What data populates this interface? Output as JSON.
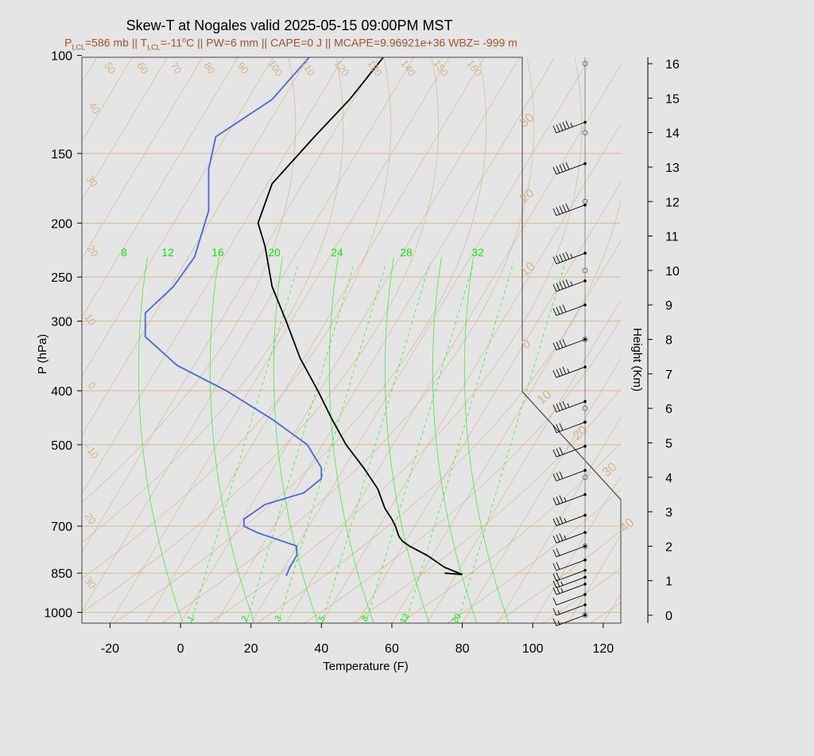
{
  "title": "Skew-T at Nogales valid 2025-05-15 09:00PM MST",
  "subtitle": {
    "p_lcl_sym": "P",
    "p_lcl_sub": "LCL",
    "p_lcl_val": "=586 mb || ",
    "t_lcl_sym": "T",
    "t_lcl_sub": "LCL",
    "t_lcl_val": "=-11",
    "deg": "o",
    "rest": "C || PW=6 mm || CAPE=0 J || MCAPE=9.96921e+36 WBZ= -999 m"
  },
  "colors": {
    "temperature": "#000000",
    "dewpoint": "#4169e1",
    "grid": "#d2b48c",
    "mixing_ratio": "#00ee00",
    "wind": "#000000"
  },
  "chart_data": {
    "type": "line",
    "xlabel": "Temperature (F)",
    "ylabel": "P (hPa)",
    "y2label": "Height (Km)",
    "xlim": [
      -28,
      125
    ],
    "ylim": [
      1050,
      100
    ],
    "x_ticks": [
      -20,
      0,
      20,
      40,
      60,
      80,
      100,
      120
    ],
    "y_ticks": [
      100,
      150,
      200,
      250,
      300,
      400,
      500,
      700,
      850,
      1000
    ],
    "height_ticks": [
      "0",
      "1",
      "2",
      "3",
      "4",
      "5",
      "6",
      "7",
      "8",
      "9",
      "10",
      "11",
      "12",
      "13",
      "14",
      "15",
      "16"
    ],
    "skewed_isotherm_labels": [
      {
        "p": 30,
        "label": "30"
      },
      {
        "p": 20,
        "label": "20"
      },
      {
        "p": 10,
        "label": "10"
      },
      {
        "p": 0,
        "label": "0"
      },
      {
        "p": -10,
        "label": "10"
      },
      {
        "p": -20,
        "label": "20"
      },
      {
        "p": -30,
        "label": "30"
      },
      {
        "p": -40,
        "label": "40"
      }
    ],
    "theta_labels": [
      "50",
      "60",
      "70",
      "80",
      "90",
      "100",
      "110",
      "120",
      "130",
      "140",
      "150",
      "160",
      "40",
      "30",
      "20",
      "10",
      "0",
      "-10",
      "20",
      "30"
    ],
    "mixing_ratio_top_labels": [
      "8",
      "12",
      "16",
      "20",
      "24",
      "28",
      "32"
    ],
    "mixing_ratio_bottom_labels": [
      "1",
      "2",
      "3",
      "5",
      "8",
      "12",
      "20"
    ],
    "series": [
      {
        "name": "temperature",
        "points": [
          [
            850,
            75
          ],
          [
            855,
            80
          ],
          [
            830,
            75
          ],
          [
            790,
            70
          ],
          [
            760,
            65
          ],
          [
            745,
            63
          ],
          [
            730,
            62
          ],
          [
            700,
            61
          ],
          [
            680,
            60
          ],
          [
            650,
            58
          ],
          [
            600,
            56
          ],
          [
            550,
            52
          ],
          [
            500,
            47
          ],
          [
            450,
            43
          ],
          [
            400,
            39
          ],
          [
            350,
            34
          ],
          [
            300,
            30
          ],
          [
            260,
            26
          ],
          [
            220,
            24
          ],
          [
            200,
            22
          ],
          [
            170,
            26
          ],
          [
            140,
            38
          ],
          [
            120,
            48
          ],
          [
            100,
            58
          ]
        ]
      },
      {
        "name": "dewpoint",
        "points": [
          [
            860,
            30
          ],
          [
            830,
            31
          ],
          [
            790,
            33
          ],
          [
            760,
            33
          ],
          [
            720,
            22
          ],
          [
            700,
            18
          ],
          [
            680,
            18
          ],
          [
            640,
            24
          ],
          [
            610,
            35
          ],
          [
            575,
            40
          ],
          [
            550,
            40
          ],
          [
            500,
            36
          ],
          [
            450,
            26
          ],
          [
            400,
            13
          ],
          [
            360,
            -1
          ],
          [
            320,
            -10
          ],
          [
            290,
            -10
          ],
          [
            260,
            -2
          ],
          [
            230,
            4
          ],
          [
            190,
            8
          ],
          [
            160,
            8
          ],
          [
            140,
            10
          ],
          [
            120,
            26
          ],
          [
            100,
            37
          ]
        ]
      }
    ],
    "wind_barbs": [
      {
        "h_km": 0.0,
        "dir": 270,
        "spd": 5
      },
      {
        "h_km": 0.3,
        "dir": 280,
        "spd": 5
      },
      {
        "h_km": 0.6,
        "dir": 270,
        "spd": 10
      },
      {
        "h_km": 0.9,
        "dir": 280,
        "spd": 15
      },
      {
        "h_km": 1.1,
        "dir": 270,
        "spd": 15
      },
      {
        "h_km": 1.3,
        "dir": 270,
        "spd": 20
      },
      {
        "h_km": 1.6,
        "dir": 260,
        "spd": 20
      },
      {
        "h_km": 2.0,
        "dir": 250,
        "spd": 20
      },
      {
        "h_km": 2.4,
        "dir": 250,
        "spd": 25
      },
      {
        "h_km": 2.9,
        "dir": 260,
        "spd": 25
      },
      {
        "h_km": 3.5,
        "dir": 240,
        "spd": 25
      },
      {
        "h_km": 4.2,
        "dir": 240,
        "spd": 30
      },
      {
        "h_km": 4.9,
        "dir": 240,
        "spd": 30
      },
      {
        "h_km": 5.6,
        "dir": 240,
        "spd": 30
      },
      {
        "h_km": 6.2,
        "dir": 240,
        "spd": 35
      },
      {
        "h_km": 7.2,
        "dir": 240,
        "spd": 35
      },
      {
        "h_km": 8.0,
        "dir": 240,
        "spd": 40
      },
      {
        "h_km": 9.0,
        "dir": 240,
        "spd": 40
      },
      {
        "h_km": 9.7,
        "dir": 240,
        "spd": 45
      },
      {
        "h_km": 10.5,
        "dir": 240,
        "spd": 45
      },
      {
        "h_km": 11.9,
        "dir": 240,
        "spd": 50
      },
      {
        "h_km": 13.1,
        "dir": 240,
        "spd": 50
      },
      {
        "h_km": 14.3,
        "dir": 240,
        "spd": 45
      }
    ]
  }
}
